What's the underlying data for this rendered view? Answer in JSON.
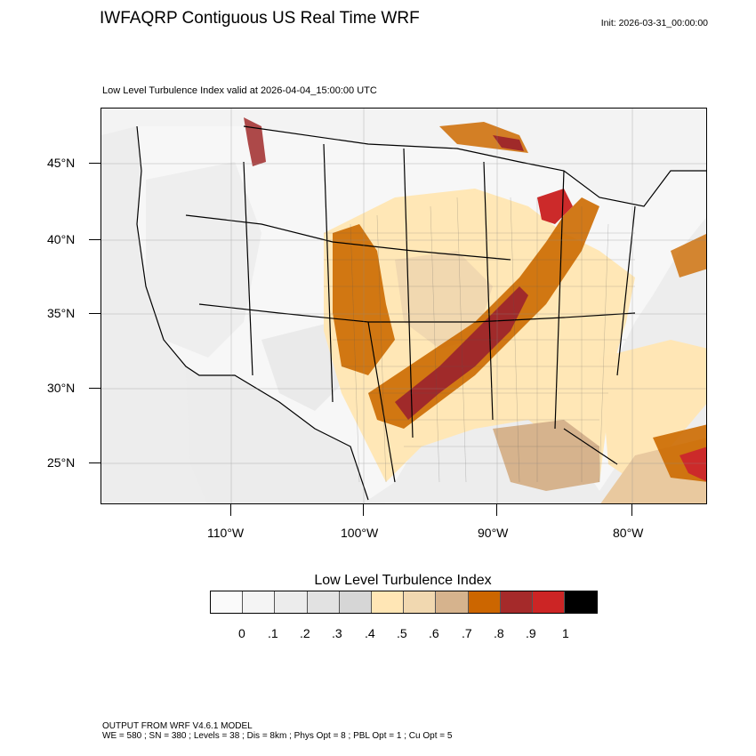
{
  "header": {
    "title": "IWFAQRP Contiguous US Real Time WRF",
    "init": "Init: 2026-03-31_00:00:00",
    "subtitle": "Low Level Turbulence Index valid at 2026-04-04_15:00:00 UTC"
  },
  "map": {
    "lat_labels": [
      "45°N",
      "40°N",
      "35°N",
      "30°N",
      "25°N"
    ],
    "lon_labels": [
      "110°W",
      "100°W",
      "90°W",
      "80°W"
    ],
    "colors": {
      "ocean": "#eeeeee",
      "land": "#f6f6f6",
      "low": "#ffe7b6",
      "mid": "#d3b28c",
      "high": "#cc6a00",
      "very_high": "#a02a2a",
      "extreme": "#cc2a2a"
    }
  },
  "legend": {
    "title": "Low Level Turbulence Index",
    "labels": [
      "0",
      ".1",
      ".2",
      ".3",
      ".4",
      ".5",
      ".6",
      ".7",
      ".8",
      ".9",
      "1"
    ],
    "colors": [
      "#fafafa",
      "#f4f4f4",
      "#ececec",
      "#e2e2e2",
      "#d6d6d6",
      "#ffe6b5",
      "#f1d8b0",
      "#d6b38d",
      "#cc6600",
      "#a52a2a",
      "#cc2525",
      "#000000"
    ]
  },
  "footer": {
    "line1": "OUTPUT FROM WRF V4.6.1 MODEL",
    "line2": "WE = 580 ; SN = 380 ; Levels = 38 ; Dis = 8km ; Phys Opt = 8 ; PBL Opt = 1 ; Cu Opt = 5"
  }
}
